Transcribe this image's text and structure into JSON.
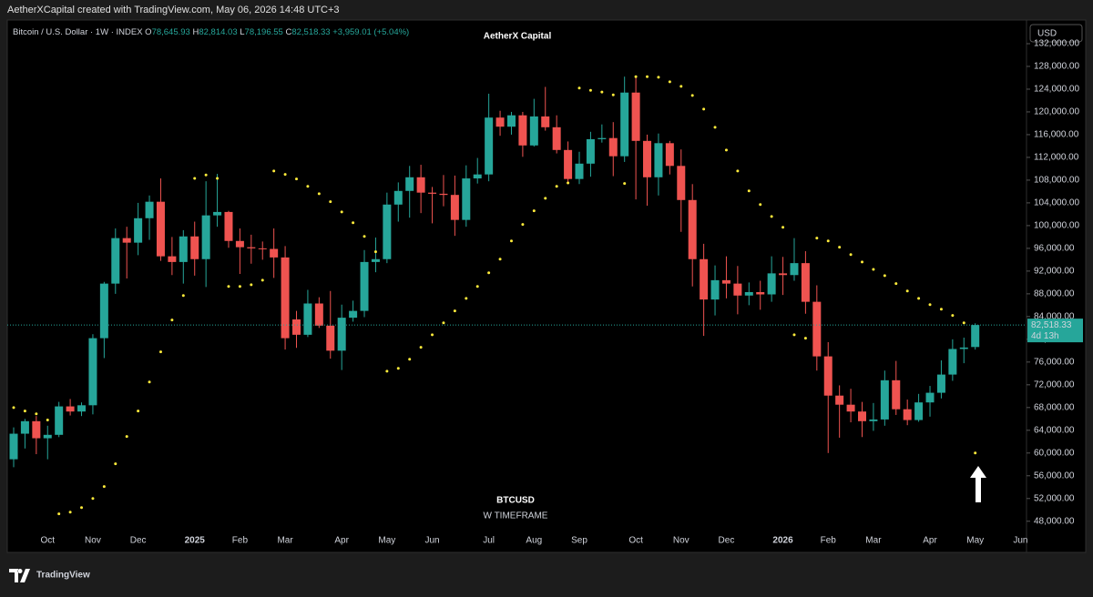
{
  "header": {
    "attribution": "AetherXCapital created with TradingView.com, May 06, 2026 14:48 UTC+3",
    "brand": "TradingView"
  },
  "chart_data": {
    "type": "candlestick",
    "title": "AetherX Capital",
    "watermark": "BTCUSD",
    "watermark_sub": "W TIMEFRAME",
    "currency": "USD",
    "legend": {
      "symbol": "Bitcoin / U.S. Dollar · 1W · INDEX",
      "o_label": "O",
      "o": "78,645.93",
      "h_label": "H",
      "h": "82,814.03",
      "l_label": "L",
      "l": "78,196.55",
      "c_label": "C",
      "c": "82,518.33",
      "change": "+3,959.01 (+5.04%)"
    },
    "last_price_label": "82,518.33",
    "countdown": "4d 13h",
    "up_color": "#26a69a",
    "down_color": "#ef5350",
    "categories": [
      null,
      null,
      null,
      "Oct",
      null,
      null,
      null,
      "Nov",
      null,
      null,
      null,
      "Dec",
      null,
      null,
      null,
      null,
      "2025",
      null,
      null,
      null,
      "Feb",
      null,
      null,
      null,
      "Mar",
      null,
      null,
      null,
      null,
      "Apr",
      null,
      null,
      null,
      "May",
      null,
      null,
      null,
      "Jun",
      null,
      null,
      null,
      null,
      "Jul",
      null,
      null,
      null,
      "Aug",
      null,
      null,
      null,
      "Sep",
      null,
      null,
      null,
      null,
      "Oct",
      null,
      null,
      null,
      "Nov",
      null,
      null,
      null,
      "Dec",
      null,
      null,
      null,
      null,
      "2026",
      null,
      null,
      null,
      "Feb",
      null,
      null,
      null,
      "Mar",
      null,
      null,
      null,
      null,
      "Apr",
      null,
      null,
      null,
      "May",
      null,
      null,
      null,
      "Jun"
    ],
    "open": [
      58900,
      63400,
      65600,
      62600,
      63200,
      68200,
      67300,
      68400,
      80200,
      89800,
      97800,
      97000,
      101300,
      104200,
      94600,
      93600,
      98100,
      94100,
      101800,
      102400,
      97300,
      96200,
      96000,
      95900,
      94400,
      83500,
      80800,
      86300,
      82400,
      78000,
      83800,
      85000,
      93600,
      94100,
      103700,
      106100,
      108500,
      105800,
      105600,
      105400,
      101000,
      108300,
      109000,
      119000,
      117400,
      119400,
      114100,
      119200,
      117300,
      113300,
      108200,
      110900,
      115200,
      115400,
      112200,
      123400,
      114900,
      108500,
      114500,
      110500,
      104500,
      94100,
      87000,
      90400,
      89800,
      87700,
      88300,
      87900,
      91600,
      91300,
      93400,
      86600,
      77000,
      70100,
      68500,
      67300,
      65600,
      65900,
      72800,
      67700,
      65800,
      68900,
      70600,
      73800,
      78300,
      78645.93,
      null,
      null,
      null,
      null
    ],
    "high": [
      64500,
      66000,
      66500,
      64800,
      69000,
      69500,
      68900,
      80900,
      90100,
      99500,
      99800,
      104000,
      105300,
      108300,
      98000,
      99200,
      100700,
      107800,
      109100,
      102600,
      99500,
      98400,
      97200,
      99500,
      96400,
      85000,
      88700,
      87400,
      88500,
      86100,
      86800,
      95700,
      97900,
      105800,
      107600,
      110500,
      110700,
      106800,
      108900,
      108800,
      110600,
      111900,
      123200,
      120200,
      120000,
      120000,
      122300,
      124400,
      119400,
      114800,
      113000,
      116500,
      117800,
      118200,
      126200,
      126100,
      116000,
      116200,
      114900,
      113400,
      107300,
      96800,
      93000,
      94600,
      92900,
      90000,
      90300,
      94600,
      94500,
      97800,
      95500,
      89500,
      79500,
      71900,
      71300,
      69000,
      68800,
      74500,
      76200,
      69400,
      70400,
      71800,
      76300,
      80000,
      80300,
      82814.03,
      null,
      null,
      null,
      null
    ],
    "low": [
      57500,
      60800,
      59800,
      58900,
      62800,
      66600,
      66500,
      66800,
      76700,
      88000,
      90700,
      94800,
      97500,
      93800,
      91300,
      89800,
      91200,
      89200,
      99800,
      96100,
      91500,
      93300,
      94000,
      90800,
      78200,
      78500,
      80400,
      82000,
      76600,
      74600,
      83100,
      83900,
      91800,
      93400,
      100700,
      101400,
      102200,
      100400,
      103400,
      98200,
      99800,
      107400,
      107800,
      115800,
      116000,
      112100,
      113900,
      116700,
      112700,
      107600,
      107300,
      108600,
      114600,
      108700,
      111200,
      104600,
      103500,
      105300,
      109000,
      98900,
      89300,
      80600,
      84200,
      87200,
      84400,
      86000,
      85200,
      86600,
      87800,
      90300,
      84500,
      74500,
      60000,
      62700,
      65400,
      62800,
      63900,
      64800,
      66700,
      64900,
      65500,
      66400,
      69600,
      72700,
      75800,
      78196.55,
      null,
      null,
      null,
      null
    ],
    "close": [
      63400,
      65600,
      62600,
      63200,
      68200,
      67300,
      68400,
      80200,
      89800,
      97800,
      97000,
      101300,
      104200,
      94600,
      93600,
      98100,
      94100,
      101800,
      102400,
      97300,
      96200,
      96000,
      95900,
      94400,
      80200,
      80800,
      86300,
      82400,
      78000,
      83800,
      85000,
      93600,
      94100,
      103700,
      106100,
      108500,
      105800,
      105600,
      105400,
      101000,
      108300,
      109000,
      119000,
      117400,
      119400,
      114100,
      119200,
      117300,
      113300,
      108200,
      110900,
      115200,
      115400,
      112200,
      123400,
      114900,
      108500,
      114500,
      110500,
      104500,
      94100,
      87000,
      90400,
      89800,
      87700,
      88300,
      87900,
      91600,
      91300,
      93400,
      86600,
      77000,
      70100,
      68500,
      67300,
      65600,
      65900,
      72800,
      67700,
      65800,
      68900,
      70600,
      73800,
      78300,
      78559.32,
      82518.33,
      null,
      null,
      null,
      null
    ],
    "psar": {
      "color": "#ffeb3b",
      "values": [
        68000,
        67400,
        66900,
        65800,
        49300,
        49600,
        50400,
        52000,
        54100,
        58100,
        62900,
        67400,
        72500,
        77800,
        83400,
        87700,
        108300,
        108900,
        108300,
        89300,
        89300,
        89600,
        90400,
        109600,
        109000,
        108200,
        106900,
        105600,
        104200,
        102400,
        100500,
        98100,
        95400,
        74400,
        74900,
        76500,
        78600,
        80800,
        82900,
        85000,
        87200,
        89300,
        91700,
        94100,
        97300,
        100200,
        102600,
        104800,
        106900,
        107500,
        124200,
        123800,
        123500,
        123000,
        107400,
        126200,
        126200,
        126100,
        125300,
        124500,
        122900,
        120500,
        117300,
        113300,
        109600,
        106100,
        103700,
        101600,
        99700,
        80800,
        80200,
        97800,
        97300,
        96200,
        94900,
        93600,
        92300,
        91200,
        89800,
        88500,
        87200,
        86100,
        85300,
        84200,
        82900,
        60000,
        null,
        null,
        null,
        null
      ]
    },
    "ylim": [
      43000,
      136000
    ],
    "yticks": [
      {
        "value": 48000,
        "label": "48,000.00"
      },
      {
        "value": 52000,
        "label": "52,000.00"
      },
      {
        "value": 56000,
        "label": "56,000.00"
      },
      {
        "value": 60000,
        "label": "60,000.00"
      },
      {
        "value": 64000,
        "label": "64,000.00"
      },
      {
        "value": 68000,
        "label": "68,000.00"
      },
      {
        "value": 72000,
        "label": "72,000.00"
      },
      {
        "value": 76000,
        "label": "76,000.00"
      },
      {
        "value": 80000,
        "label": "80,000.00"
      },
      {
        "value": 84000,
        "label": "84,000.00"
      },
      {
        "value": 88000,
        "label": "88,000.00"
      },
      {
        "value": 92000,
        "label": "92,000.00"
      },
      {
        "value": 96000,
        "label": "96,000.00"
      },
      {
        "value": 100000,
        "label": "100,000.00"
      },
      {
        "value": 104000,
        "label": "104,000.00"
      },
      {
        "value": 108000,
        "label": "108,000.00"
      },
      {
        "value": 112000,
        "label": "112,000.00"
      },
      {
        "value": 116000,
        "label": "116,000.00"
      },
      {
        "value": 120000,
        "label": "120,000.00"
      },
      {
        "value": 124000,
        "label": "124,000.00"
      },
      {
        "value": 128000,
        "label": "128,000.00"
      },
      {
        "value": 132000,
        "label": "132,000.00"
      }
    ],
    "grid": false
  }
}
